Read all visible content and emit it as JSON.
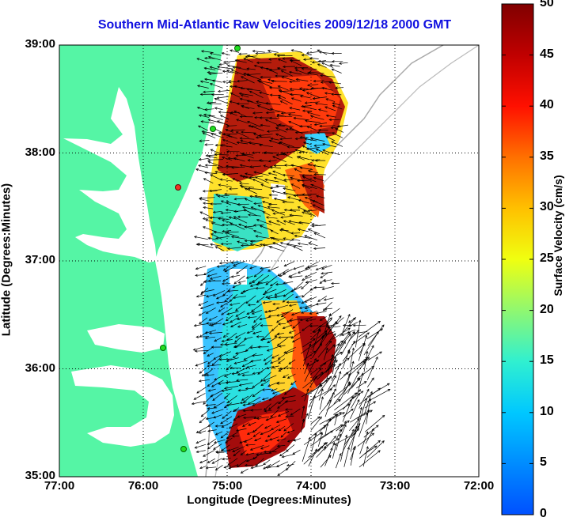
{
  "title": "Southern Mid-Atlantic Raw Velocities 2009/12/18 2000 GMT",
  "xlabel": "Longitude (Degrees:Minutes)",
  "ylabel": "Latitude (Degrees:Minutes)",
  "colorbar": {
    "label": "Surface Velocity (cm/s)",
    "ticks": [
      "0",
      "5",
      "10",
      "15",
      "20",
      "25",
      "30",
      "35",
      "40",
      "45",
      "50"
    ],
    "range": [
      0,
      50
    ]
  },
  "map_data": {
    "lon_ticks": [
      "77:00",
      "76:00",
      "75:00",
      "74:00",
      "73:00",
      "72:00"
    ],
    "lat_ticks": [
      "39:00",
      "38:00",
      "37:00",
      "36:00",
      "35:00"
    ],
    "lon_range": [
      -77,
      -72
    ],
    "lat_range": [
      35,
      39
    ],
    "colors": {
      "land": "#55f5a5",
      "water": "#ffffff",
      "title": "#1010e0",
      "station": "#22dd22",
      "station_alt": "#ee3322"
    }
  }
}
